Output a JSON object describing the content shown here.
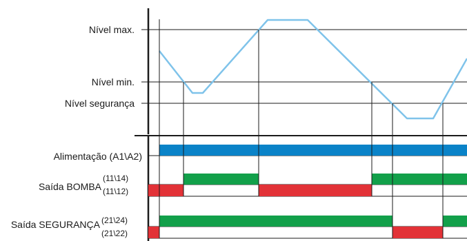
{
  "levels": {
    "max": "Nível max.",
    "min": "Nível min.",
    "safety": "Nível segurança"
  },
  "signals": {
    "power": "Alimentação (A1\\A2)",
    "pump": "Saída BOMBA",
    "pump_no": "(11\\14)",
    "pump_nc": "(11\\12)",
    "safety": "Saída SEGURANÇA",
    "safety_no": "(21\\24)",
    "safety_nc": "(21\\22)"
  },
  "colors": {
    "level_curve": "#7fc3ea",
    "power_bar": "#0a83c8",
    "relay_on": "#12a04a",
    "relay_off": "#e23237",
    "lines": "#1a1a1a"
  }
}
